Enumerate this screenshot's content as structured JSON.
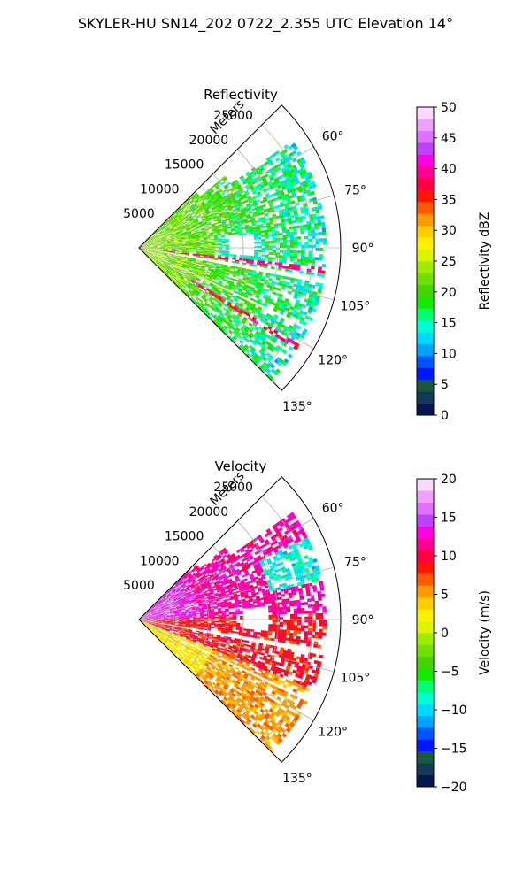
{
  "figure_title": "SKYLER-HU  SN14_202  0722_2.355 UTC Elevation 14°",
  "chart_data": [
    {
      "type": "heatmap",
      "projection": "polar-sector",
      "title": "Reflectivity",
      "radial_label": "Meters",
      "radial_ticks": [
        "5000",
        "10000",
        "15000",
        "20000",
        "25000"
      ],
      "radial_tick_values": [
        5000,
        10000,
        15000,
        20000,
        25000
      ],
      "angle_ticks": [
        "60°",
        "75°",
        "90°",
        "105°",
        "120°",
        "135°"
      ],
      "angle_tick_values": [
        60,
        75,
        90,
        105,
        120,
        135
      ],
      "theta_range_deg": [
        45,
        135
      ],
      "r_max": 29000,
      "grid": true,
      "colorbar": {
        "label": "Reflectivity dBZ",
        "range": [
          0,
          50
        ],
        "ticks": [
          "0",
          "5",
          "10",
          "15",
          "20",
          "25",
          "30",
          "35",
          "40",
          "45",
          "50"
        ],
        "colors": [
          "#06164f",
          "#113a57",
          "#1a5a3a",
          "#0016ff",
          "#0055ff",
          "#00a2ff",
          "#00d8ff",
          "#00ffd0",
          "#00ff70",
          "#17e800",
          "#44d400",
          "#6fe000",
          "#9fec00",
          "#ddf400",
          "#fff000",
          "#ffcc00",
          "#ff9a00",
          "#ff5a00",
          "#ff1800",
          "#ff0040",
          "#ff0090",
          "#ff00e0",
          "#c040ff",
          "#e070ff",
          "#f0a0ff",
          "#fbd8ff"
        ]
      },
      "dominant_value_range": [
        15,
        30
      ],
      "approx_peak": 40
    },
    {
      "type": "heatmap",
      "projection": "polar-sector",
      "title": "Velocity",
      "radial_label": "Meters",
      "radial_ticks": [
        "5000",
        "10000",
        "15000",
        "20000",
        "25000"
      ],
      "radial_tick_values": [
        5000,
        10000,
        15000,
        20000,
        25000
      ],
      "angle_ticks": [
        "60°",
        "75°",
        "90°",
        "105°",
        "120°",
        "135°"
      ],
      "angle_tick_values": [
        60,
        75,
        90,
        105,
        120,
        135
      ],
      "theta_range_deg": [
        45,
        135
      ],
      "r_max": 29000,
      "grid": true,
      "colorbar": {
        "label": "Velocity (m/s)",
        "range": [
          -20,
          20
        ],
        "ticks": [
          "−20",
          "−15",
          "−10",
          "−5",
          "0",
          "5",
          "10",
          "15",
          "20"
        ],
        "colors": [
          "#06164f",
          "#113a57",
          "#1a5a3a",
          "#0016ff",
          "#0055ff",
          "#00a2ff",
          "#00d8ff",
          "#00ffd0",
          "#00ff70",
          "#17e800",
          "#44d400",
          "#6fe000",
          "#9fec00",
          "#ddf400",
          "#fff000",
          "#ffcc00",
          "#ff9a00",
          "#ff5a00",
          "#ff1800",
          "#ff0040",
          "#ff0090",
          "#ff00e0",
          "#c040ff",
          "#e070ff",
          "#f0a0ff",
          "#fbd8ff"
        ]
      },
      "dominant_value_range": [
        0,
        15
      ],
      "approx_peak": 15
    }
  ]
}
